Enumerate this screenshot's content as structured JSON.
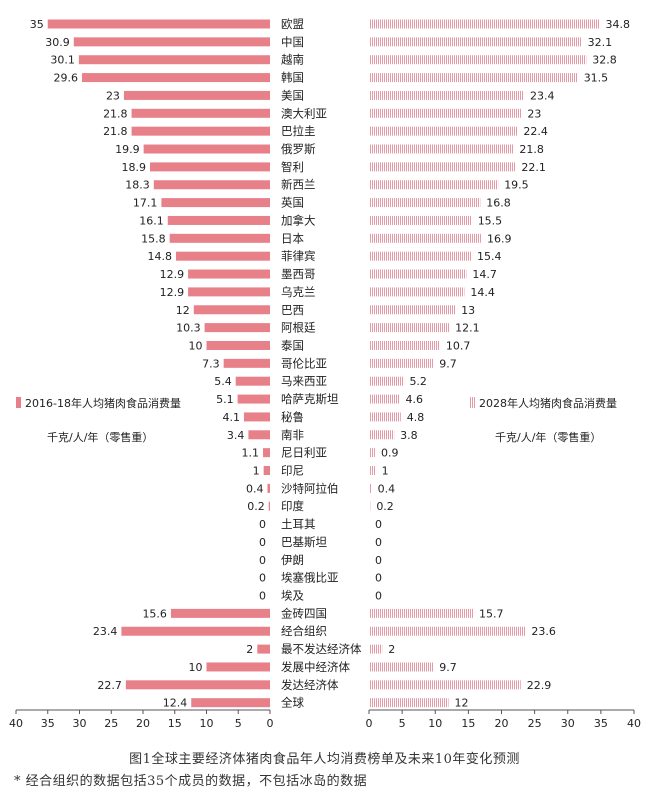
{
  "figure": {
    "caption": "图1全球主要经济体猪肉食品年人均消费榜单及未来10年变化预测",
    "note": "* 经合组织的数据包括35个成员的数据，不包括冰岛的数据"
  },
  "chart_data": {
    "type": "bar",
    "orientation": "horizontal-butterfly",
    "categories": [
      "欧盟",
      "中国",
      "越南",
      "韩国",
      "美国",
      "澳大利亚",
      "巴拉圭",
      "俄罗斯",
      "智利",
      "新西兰",
      "英国",
      "加拿大",
      "日本",
      "菲律宾",
      "墨西哥",
      "乌克兰",
      "巴西",
      "阿根廷",
      "泰国",
      "哥伦比亚",
      "马来西亚",
      "哈萨克斯坦",
      "秘鲁",
      "南非",
      "尼日利亚",
      "印尼",
      "沙特阿拉伯",
      "印度",
      "土耳其",
      "巴基斯坦",
      "伊朗",
      "埃塞俄比亚",
      "埃及",
      "金砖四国",
      "经合组织",
      "最不发达经济体",
      "发展中经济体",
      "发达经济体",
      "全球"
    ],
    "series": [
      {
        "name": "2016-18年人均猪肉食品消费量",
        "unit": "千克/人/年（零售重）",
        "color": "#e8808a",
        "values": [
          35,
          30.9,
          30.1,
          29.6,
          23,
          21.8,
          21.8,
          19.9,
          18.9,
          18.3,
          17.1,
          16.1,
          15.8,
          14.8,
          12.9,
          12.9,
          12,
          10.3,
          10,
          7.3,
          5.4,
          5.1,
          4.1,
          3.4,
          1.1,
          1,
          0.4,
          0.2,
          0,
          0,
          0,
          0,
          0,
          15.6,
          23.4,
          2,
          10,
          22.7,
          12.4
        ]
      },
      {
        "name": "2028年人均猪肉食品消费量",
        "unit": "千克/人/年（零售重）",
        "color": "#e8a0aa",
        "values": [
          34.8,
          32.1,
          32.8,
          31.5,
          23.4,
          23,
          22.4,
          21.8,
          22.1,
          19.5,
          16.8,
          15.5,
          16.9,
          15.4,
          14.7,
          14.4,
          13,
          12.1,
          10.7,
          9.7,
          5.2,
          4.6,
          4.8,
          3.8,
          0.9,
          1,
          0.4,
          0.2,
          0,
          0,
          0,
          0,
          0,
          15.7,
          23.6,
          2,
          9.7,
          22.9,
          12
        ]
      }
    ],
    "left_axis": {
      "ticks": [
        "40",
        "35",
        "30",
        "25",
        "20",
        "15",
        "10",
        "5",
        "0"
      ],
      "range": [
        0,
        40
      ],
      "reversed": true
    },
    "right_axis": {
      "ticks": [
        "0",
        "5",
        "10",
        "15",
        "20",
        "25",
        "30",
        "35",
        "40"
      ],
      "range": [
        0,
        40
      ]
    }
  }
}
